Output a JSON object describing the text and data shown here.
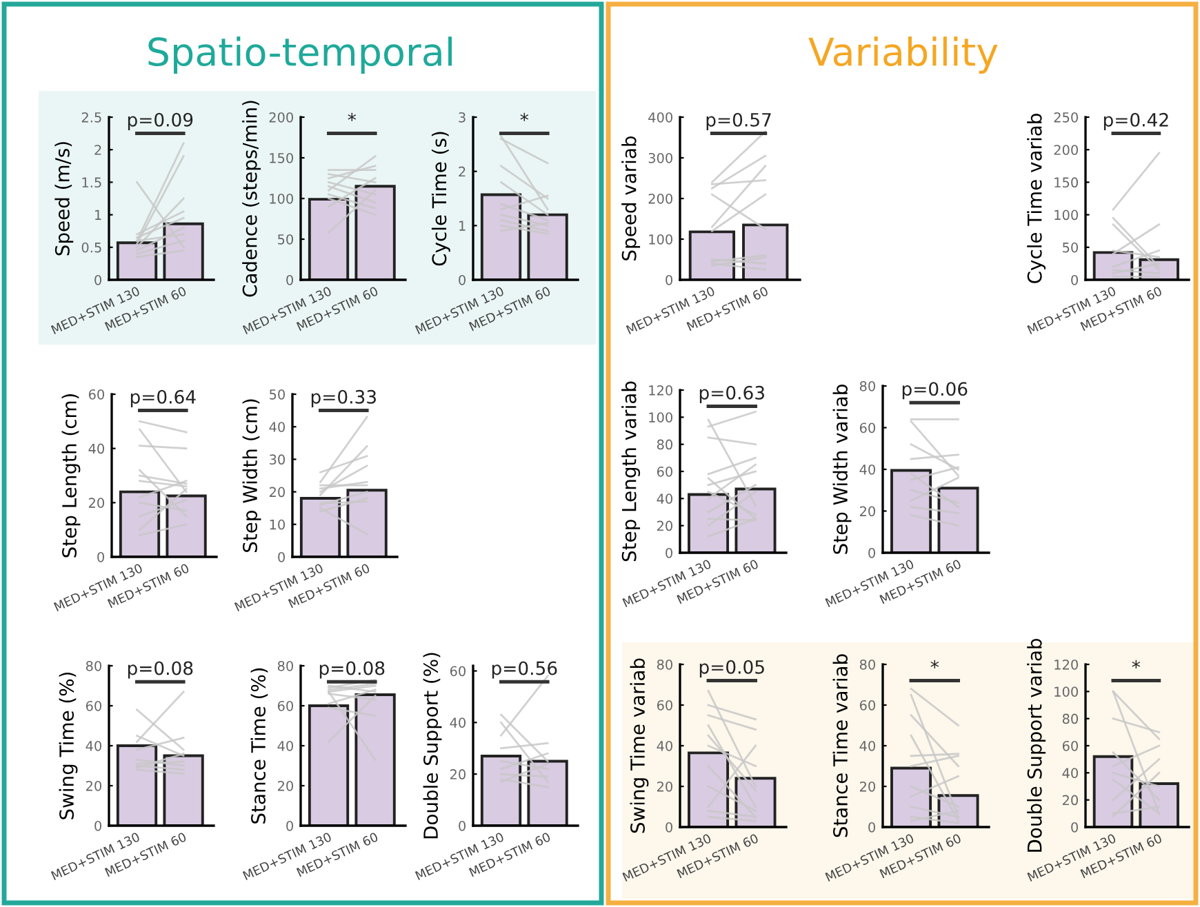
{
  "chart_data": [
    {
      "type": "other",
      "title": "Spatio-temporal"
    },
    {
      "type": "bar",
      "ylabel": "Speed (m/s)",
      "categories": [
        "MED+STIM 130",
        "MED+STIM 60"
      ],
      "ylim": [
        0,
        2.5
      ],
      "yticks": [
        0,
        0.5,
        1,
        1.5,
        2,
        2.5
      ],
      "annotations": [
        "p=0.09"
      ],
      "series": [
        {
          "type": "bar",
          "color": "#d9cbe2",
          "values": [
            0.57,
            0.86
          ]
        },
        {
          "type": "line",
          "color": "#c8c8c8",
          "values": [
            1.5,
            0.5
          ]
        },
        {
          "type": "line",
          "color": "#c8c8c8",
          "values": [
            0.6,
            2.1
          ]
        },
        {
          "type": "line",
          "color": "#c8c8c8",
          "values": [
            0.55,
            1.9
          ]
        },
        {
          "type": "line",
          "color": "#c8c8c8",
          "values": [
            0.5,
            1.25
          ]
        },
        {
          "type": "line",
          "color": "#c8c8c8",
          "values": [
            0.65,
            0.95
          ]
        },
        {
          "type": "line",
          "color": "#c8c8c8",
          "values": [
            0.4,
            0.6
          ]
        },
        {
          "type": "line",
          "color": "#c8c8c8",
          "values": [
            0.45,
            0.8
          ]
        },
        {
          "type": "line",
          "color": "#c8c8c8",
          "values": [
            0.6,
            0.7
          ]
        },
        {
          "type": "line",
          "color": "#c8c8c8",
          "values": [
            0.35,
            0.45
          ]
        },
        {
          "type": "line",
          "color": "#c8c8c8",
          "values": [
            0.7,
            1.05
          ]
        }
      ]
    },
    {
      "type": "bar",
      "ylabel": "Cadence (steps/min)",
      "categories": [
        "MED+STIM 130",
        "MED+STIM 60"
      ],
      "ylim": [
        0,
        200
      ],
      "yticks": [
        0,
        50,
        100,
        150,
        200
      ],
      "annotations": [
        "*"
      ],
      "series": [
        {
          "type": "bar",
          "color": "#d9cbe2",
          "values": [
            99,
            115
          ]
        },
        {
          "type": "line",
          "color": "#c8c8c8",
          "values": [
            58,
            110
          ]
        },
        {
          "type": "line",
          "color": "#c8c8c8",
          "values": [
            110,
            152
          ]
        },
        {
          "type": "line",
          "color": "#c8c8c8",
          "values": [
            130,
            120
          ]
        },
        {
          "type": "line",
          "color": "#c8c8c8",
          "values": [
            125,
            140
          ]
        },
        {
          "type": "line",
          "color": "#c8c8c8",
          "values": [
            115,
            95
          ]
        },
        {
          "type": "line",
          "color": "#c8c8c8",
          "values": [
            100,
            80
          ]
        },
        {
          "type": "line",
          "color": "#c8c8c8",
          "values": [
            135,
            135
          ]
        },
        {
          "type": "line",
          "color": "#c8c8c8",
          "values": [
            90,
            125
          ]
        },
        {
          "type": "line",
          "color": "#c8c8c8",
          "values": [
            120,
            105
          ]
        },
        {
          "type": "line",
          "color": "#c8c8c8",
          "values": [
            105,
            88
          ]
        }
      ]
    },
    {
      "type": "bar",
      "ylabel": "Cycle Time (s)",
      "categories": [
        "MED+STIM 130",
        "MED+STIM 60"
      ],
      "ylim": [
        0,
        3
      ],
      "yticks": [
        0,
        1,
        2,
        3
      ],
      "annotations": [
        "*"
      ],
      "series": [
        {
          "type": "bar",
          "color": "#d9cbe2",
          "values": [
            1.57,
            1.2
          ]
        },
        {
          "type": "line",
          "color": "#c8c8c8",
          "values": [
            2.65,
            1.3
          ]
        },
        {
          "type": "line",
          "color": "#c8c8c8",
          "values": [
            2.6,
            2.15
          ]
        },
        {
          "type": "line",
          "color": "#c8c8c8",
          "values": [
            2.1,
            1.5
          ]
        },
        {
          "type": "line",
          "color": "#c8c8c8",
          "values": [
            1.8,
            1.2
          ]
        },
        {
          "type": "line",
          "color": "#c8c8c8",
          "values": [
            1.3,
            1.55
          ]
        },
        {
          "type": "line",
          "color": "#c8c8c8",
          "values": [
            1.2,
            1.0
          ]
        },
        {
          "type": "line",
          "color": "#c8c8c8",
          "values": [
            1.1,
            0.9
          ]
        },
        {
          "type": "line",
          "color": "#c8c8c8",
          "values": [
            0.9,
            1.05
          ]
        },
        {
          "type": "line",
          "color": "#c8c8c8",
          "values": [
            1.0,
            0.85
          ]
        },
        {
          "type": "line",
          "color": "#c8c8c8",
          "values": [
            1.4,
            1.1
          ]
        }
      ]
    },
    {
      "type": "bar",
      "ylabel": "Step Length (cm)",
      "categories": [
        "MED+STIM 130",
        "MED+STIM 60"
      ],
      "ylim": [
        0,
        60
      ],
      "yticks": [
        0,
        20,
        40,
        60
      ],
      "annotations": [
        "p=0.64"
      ],
      "series": [
        {
          "type": "bar",
          "color": "#d9cbe2",
          "values": [
            24,
            22.5
          ]
        },
        {
          "type": "line",
          "color": "#c8c8c8",
          "values": [
            50,
            46
          ]
        },
        {
          "type": "line",
          "color": "#c8c8c8",
          "values": [
            47,
            24
          ]
        },
        {
          "type": "line",
          "color": "#c8c8c8",
          "values": [
            41,
            40
          ]
        },
        {
          "type": "line",
          "color": "#c8c8c8",
          "values": [
            32,
            15
          ]
        },
        {
          "type": "line",
          "color": "#c8c8c8",
          "values": [
            30,
            27
          ]
        },
        {
          "type": "line",
          "color": "#c8c8c8",
          "values": [
            28,
            26
          ]
        },
        {
          "type": "line",
          "color": "#c8c8c8",
          "values": [
            22,
            28
          ]
        },
        {
          "type": "line",
          "color": "#c8c8c8",
          "values": [
            20,
            17
          ]
        },
        {
          "type": "line",
          "color": "#c8c8c8",
          "values": [
            15,
            21
          ]
        },
        {
          "type": "line",
          "color": "#c8c8c8",
          "values": [
            10,
            25
          ]
        },
        {
          "type": "line",
          "color": "#c8c8c8",
          "values": [
            8,
            12
          ]
        }
      ]
    },
    {
      "type": "bar",
      "ylabel": "Step Width (cm)",
      "categories": [
        "MED+STIM 130",
        "MED+STIM 60"
      ],
      "ylim": [
        0,
        50
      ],
      "yticks": [
        0,
        10,
        20,
        30,
        40,
        50
      ],
      "annotations": [
        "p=0.33"
      ],
      "series": [
        {
          "type": "bar",
          "color": "#d9cbe2",
          "values": [
            18,
            20.5
          ]
        },
        {
          "type": "line",
          "color": "#c8c8c8",
          "values": [
            26,
            31
          ]
        },
        {
          "type": "line",
          "color": "#c8c8c8",
          "values": [
            23,
            43
          ]
        },
        {
          "type": "line",
          "color": "#c8c8c8",
          "values": [
            22,
            22
          ]
        },
        {
          "type": "line",
          "color": "#c8c8c8",
          "values": [
            20,
            28
          ]
        },
        {
          "type": "line",
          "color": "#c8c8c8",
          "values": [
            19,
            34
          ]
        },
        {
          "type": "line",
          "color": "#c8c8c8",
          "values": [
            16.5,
            17
          ]
        },
        {
          "type": "line",
          "color": "#c8c8c8",
          "values": [
            16,
            20
          ]
        },
        {
          "type": "line",
          "color": "#c8c8c8",
          "values": [
            15,
            7
          ]
        },
        {
          "type": "line",
          "color": "#c8c8c8",
          "values": [
            14,
            18
          ]
        },
        {
          "type": "line",
          "color": "#c8c8c8",
          "values": [
            21,
            23
          ]
        }
      ]
    },
    {
      "type": "bar",
      "ylabel": "Swing Time (%)",
      "categories": [
        "MED+STIM 130",
        "MED+STIM 60"
      ],
      "ylim": [
        0,
        80
      ],
      "yticks": [
        0,
        20,
        40,
        60,
        80
      ],
      "annotations": [
        "p=0.08"
      ],
      "series": [
        {
          "type": "bar",
          "color": "#d9cbe2",
          "values": [
            40,
            35
          ]
        },
        {
          "type": "line",
          "color": "#c8c8c8",
          "values": [
            58,
            38
          ]
        },
        {
          "type": "line",
          "color": "#c8c8c8",
          "values": [
            45,
            35
          ]
        },
        {
          "type": "line",
          "color": "#c8c8c8",
          "values": [
            42,
            67
          ]
        },
        {
          "type": "line",
          "color": "#c8c8c8",
          "values": [
            38,
            44
          ]
        },
        {
          "type": "line",
          "color": "#c8c8c8",
          "values": [
            33,
            30
          ]
        },
        {
          "type": "line",
          "color": "#c8c8c8",
          "values": [
            31,
            32
          ]
        },
        {
          "type": "line",
          "color": "#c8c8c8",
          "values": [
            30,
            28
          ]
        },
        {
          "type": "line",
          "color": "#c8c8c8",
          "values": [
            29,
            36
          ]
        },
        {
          "type": "line",
          "color": "#c8c8c8",
          "values": [
            28,
            26
          ]
        }
      ]
    },
    {
      "type": "bar",
      "ylabel": "Stance Time (%)",
      "categories": [
        "MED+STIM 130",
        "MED+STIM 60"
      ],
      "ylim": [
        0,
        80
      ],
      "yticks": [
        0,
        20,
        40,
        60,
        80
      ],
      "annotations": [
        "p=0.08"
      ],
      "series": [
        {
          "type": "bar",
          "color": "#d9cbe2",
          "values": [
            60,
            65.5
          ]
        },
        {
          "type": "line",
          "color": "#c8c8c8",
          "values": [
            70,
            67
          ]
        },
        {
          "type": "line",
          "color": "#c8c8c8",
          "values": [
            69,
            73
          ]
        },
        {
          "type": "line",
          "color": "#c8c8c8",
          "values": [
            68,
            71
          ]
        },
        {
          "type": "line",
          "color": "#c8c8c8",
          "values": [
            67,
            70
          ]
        },
        {
          "type": "line",
          "color": "#c8c8c8",
          "values": [
            66,
            63
          ]
        },
        {
          "type": "line",
          "color": "#c8c8c8",
          "values": [
            61,
            68
          ]
        },
        {
          "type": "line",
          "color": "#c8c8c8",
          "values": [
            59,
            55
          ]
        },
        {
          "type": "line",
          "color": "#c8c8c8",
          "values": [
            42,
            65
          ]
        },
        {
          "type": "line",
          "color": "#c8c8c8",
          "values": [
            67,
            33
          ]
        }
      ]
    },
    {
      "type": "bar",
      "ylabel": "Double Support (%)",
      "categories": [
        "MED+STIM 130",
        "MED+STIM 60"
      ],
      "ylim": [
        0,
        62
      ],
      "yticks": [
        0,
        20,
        40,
        60
      ],
      "annotations": [
        "p=0.56"
      ],
      "series": [
        {
          "type": "bar",
          "color": "#d9cbe2",
          "values": [
            27,
            25
          ]
        },
        {
          "type": "line",
          "color": "#c8c8c8",
          "values": [
            43,
            25
          ]
        },
        {
          "type": "line",
          "color": "#c8c8c8",
          "values": [
            40,
            17
          ]
        },
        {
          "type": "line",
          "color": "#c8c8c8",
          "values": [
            35,
            58
          ]
        },
        {
          "type": "line",
          "color": "#c8c8c8",
          "values": [
            30,
            32
          ]
        },
        {
          "type": "line",
          "color": "#c8c8c8",
          "values": [
            25,
            22
          ]
        },
        {
          "type": "line",
          "color": "#c8c8c8",
          "values": [
            22,
            28
          ]
        },
        {
          "type": "line",
          "color": "#c8c8c8",
          "values": [
            20,
            19
          ]
        },
        {
          "type": "line",
          "color": "#c8c8c8",
          "values": [
            18,
            15
          ]
        },
        {
          "type": "line",
          "color": "#c8c8c8",
          "values": [
            17,
            24
          ]
        }
      ]
    },
    {
      "type": "other",
      "title": "Variability"
    },
    {
      "type": "bar",
      "ylabel": "Speed variab",
      "categories": [
        "MED+STIM 130",
        "MED+STIM 60"
      ],
      "ylim": [
        0,
        400
      ],
      "yticks": [
        0,
        100,
        200,
        300,
        400
      ],
      "annotations": [
        "p=0.57"
      ],
      "series": [
        {
          "type": "bar",
          "color": "#d9cbe2",
          "values": [
            118,
            135
          ]
        },
        {
          "type": "line",
          "color": "#c8c8c8",
          "values": [
            240,
            365
          ]
        },
        {
          "type": "line",
          "color": "#c8c8c8",
          "values": [
            235,
            245
          ]
        },
        {
          "type": "line",
          "color": "#c8c8c8",
          "values": [
            225,
            305
          ]
        },
        {
          "type": "line",
          "color": "#c8c8c8",
          "values": [
            210,
            125
          ]
        },
        {
          "type": "line",
          "color": "#c8c8c8",
          "values": [
            130,
            280
          ]
        },
        {
          "type": "line",
          "color": "#c8c8c8",
          "values": [
            120,
            210
          ]
        },
        {
          "type": "line",
          "color": "#c8c8c8",
          "values": [
            50,
            40
          ]
        },
        {
          "type": "line",
          "color": "#c8c8c8",
          "values": [
            45,
            60
          ]
        },
        {
          "type": "line",
          "color": "#c8c8c8",
          "values": [
            40,
            25
          ]
        },
        {
          "type": "line",
          "color": "#c8c8c8",
          "values": [
            35,
            55
          ]
        }
      ]
    },
    {
      "type": "bar",
      "ylabel": "Cycle Time variab",
      "categories": [
        "MED+STIM 130",
        "MED+STIM 60"
      ],
      "ylim": [
        0,
        250
      ],
      "yticks": [
        0,
        50,
        100,
        150,
        200,
        250
      ],
      "annotations": [
        "p=0.42"
      ],
      "series": [
        {
          "type": "bar",
          "color": "#d9cbe2",
          "values": [
            42,
            31
          ]
        },
        {
          "type": "line",
          "color": "#c8c8c8",
          "values": [
            108,
            195
          ]
        },
        {
          "type": "line",
          "color": "#c8c8c8",
          "values": [
            95,
            20
          ]
        },
        {
          "type": "line",
          "color": "#c8c8c8",
          "values": [
            85,
            15
          ]
        },
        {
          "type": "line",
          "color": "#c8c8c8",
          "values": [
            45,
            35
          ]
        },
        {
          "type": "line",
          "color": "#c8c8c8",
          "values": [
            40,
            85
          ]
        },
        {
          "type": "line",
          "color": "#c8c8c8",
          "values": [
            20,
            45
          ]
        },
        {
          "type": "line",
          "color": "#c8c8c8",
          "values": [
            15,
            10
          ]
        },
        {
          "type": "line",
          "color": "#c8c8c8",
          "values": [
            10,
            25
          ]
        },
        {
          "type": "line",
          "color": "#c8c8c8",
          "values": [
            5,
            5
          ]
        }
      ]
    },
    {
      "type": "bar",
      "ylabel": "Step Length variab",
      "categories": [
        "MED+STIM 130",
        "MED+STIM 60"
      ],
      "ylim": [
        0,
        120
      ],
      "yticks": [
        0,
        20,
        40,
        60,
        80,
        100,
        120
      ],
      "annotations": [
        "p=0.63"
      ],
      "series": [
        {
          "type": "bar",
          "color": "#d9cbe2",
          "values": [
            43,
            47
          ]
        },
        {
          "type": "line",
          "color": "#c8c8c8",
          "values": [
            98,
            35
          ]
        },
        {
          "type": "line",
          "color": "#c8c8c8",
          "values": [
            93,
            104
          ]
        },
        {
          "type": "line",
          "color": "#c8c8c8",
          "values": [
            85,
            80
          ]
        },
        {
          "type": "line",
          "color": "#c8c8c8",
          "values": [
            58,
            70
          ]
        },
        {
          "type": "line",
          "color": "#c8c8c8",
          "values": [
            55,
            25
          ]
        },
        {
          "type": "line",
          "color": "#c8c8c8",
          "values": [
            50,
            60
          ]
        },
        {
          "type": "line",
          "color": "#c8c8c8",
          "values": [
            45,
            28
          ]
        },
        {
          "type": "line",
          "color": "#c8c8c8",
          "values": [
            40,
            65
          ]
        },
        {
          "type": "line",
          "color": "#c8c8c8",
          "values": [
            30,
            50
          ]
        },
        {
          "type": "line",
          "color": "#c8c8c8",
          "values": [
            25,
            24
          ]
        },
        {
          "type": "line",
          "color": "#c8c8c8",
          "values": [
            20,
            45
          ]
        },
        {
          "type": "line",
          "color": "#c8c8c8",
          "values": [
            12,
            25
          ]
        }
      ]
    },
    {
      "type": "bar",
      "ylabel": "Step Width variab",
      "categories": [
        "MED+STIM 130",
        "MED+STIM 60"
      ],
      "ylim": [
        0,
        80
      ],
      "yticks": [
        0,
        20,
        40,
        60,
        80
      ],
      "annotations": [
        "p=0.06"
      ],
      "series": [
        {
          "type": "bar",
          "color": "#d9cbe2",
          "values": [
            39.5,
            31
          ]
        },
        {
          "type": "line",
          "color": "#c8c8c8",
          "values": [
            64,
            64
          ]
        },
        {
          "type": "line",
          "color": "#c8c8c8",
          "values": [
            63,
            37
          ]
        },
        {
          "type": "line",
          "color": "#c8c8c8",
          "values": [
            52,
            40
          ]
        },
        {
          "type": "line",
          "color": "#c8c8c8",
          "values": [
            45,
            47
          ]
        },
        {
          "type": "line",
          "color": "#c8c8c8",
          "values": [
            38,
            22
          ]
        },
        {
          "type": "line",
          "color": "#c8c8c8",
          "values": [
            35,
            41
          ]
        },
        {
          "type": "line",
          "color": "#c8c8c8",
          "values": [
            30,
            24
          ]
        },
        {
          "type": "line",
          "color": "#c8c8c8",
          "values": [
            22,
            19
          ]
        },
        {
          "type": "line",
          "color": "#c8c8c8",
          "values": [
            18,
            13
          ]
        },
        {
          "type": "line",
          "color": "#c8c8c8",
          "values": [
            25,
            36
          ]
        }
      ]
    },
    {
      "type": "bar",
      "ylabel": "Swing Time variab",
      "categories": [
        "MED+STIM 130",
        "MED+STIM 60"
      ],
      "ylim": [
        0,
        80
      ],
      "yticks": [
        0,
        20,
        40,
        60,
        80
      ],
      "annotations": [
        "p=0.05"
      ],
      "series": [
        {
          "type": "bar",
          "color": "#d9cbe2",
          "values": [
            36.5,
            24
          ]
        },
        {
          "type": "line",
          "color": "#c8c8c8",
          "values": [
            67,
            20
          ]
        },
        {
          "type": "line",
          "color": "#c8c8c8",
          "values": [
            60,
            53
          ]
        },
        {
          "type": "line",
          "color": "#c8c8c8",
          "values": [
            55,
            48
          ]
        },
        {
          "type": "line",
          "color": "#c8c8c8",
          "values": [
            50,
            10
          ]
        },
        {
          "type": "line",
          "color": "#c8c8c8",
          "values": [
            45,
            18
          ]
        },
        {
          "type": "line",
          "color": "#c8c8c8",
          "values": [
            40,
            30
          ]
        },
        {
          "type": "line",
          "color": "#c8c8c8",
          "values": [
            30,
            5
          ]
        },
        {
          "type": "line",
          "color": "#c8c8c8",
          "values": [
            20,
            8
          ]
        },
        {
          "type": "line",
          "color": "#c8c8c8",
          "values": [
            10,
            40
          ]
        },
        {
          "type": "line",
          "color": "#c8c8c8",
          "values": [
            8,
            5
          ]
        },
        {
          "type": "line",
          "color": "#c8c8c8",
          "values": [
            5,
            3
          ]
        }
      ]
    },
    {
      "type": "bar",
      "ylabel": "Stance Time variab",
      "categories": [
        "MED+STIM 130",
        "MED+STIM 60"
      ],
      "ylim": [
        0,
        80
      ],
      "yticks": [
        0,
        20,
        40,
        60,
        80
      ],
      "annotations": [
        "*"
      ],
      "series": [
        {
          "type": "bar",
          "color": "#d9cbe2",
          "values": [
            29,
            15.5
          ]
        },
        {
          "type": "line",
          "color": "#c8c8c8",
          "values": [
            68,
            50
          ]
        },
        {
          "type": "line",
          "color": "#c8c8c8",
          "values": [
            65,
            5
          ]
        },
        {
          "type": "line",
          "color": "#c8c8c8",
          "values": [
            55,
            30
          ]
        },
        {
          "type": "line",
          "color": "#c8c8c8",
          "values": [
            45,
            3
          ]
        },
        {
          "type": "line",
          "color": "#c8c8c8",
          "values": [
            35,
            36
          ]
        },
        {
          "type": "line",
          "color": "#c8c8c8",
          "values": [
            30,
            35
          ]
        },
        {
          "type": "line",
          "color": "#c8c8c8",
          "values": [
            20,
            10
          ]
        },
        {
          "type": "line",
          "color": "#c8c8c8",
          "values": [
            15,
            25
          ]
        },
        {
          "type": "line",
          "color": "#c8c8c8",
          "values": [
            10,
            5
          ]
        },
        {
          "type": "line",
          "color": "#c8c8c8",
          "values": [
            5,
            2
          ]
        },
        {
          "type": "line",
          "color": "#c8c8c8",
          "values": [
            3,
            8
          ]
        }
      ]
    },
    {
      "type": "bar",
      "ylabel": "Double Support variab",
      "categories": [
        "MED+STIM 130",
        "MED+STIM 60"
      ],
      "ylim": [
        0,
        120
      ],
      "yticks": [
        0,
        20,
        40,
        60,
        80,
        100,
        120
      ],
      "annotations": [
        "*"
      ],
      "series": [
        {
          "type": "bar",
          "color": "#d9cbe2",
          "values": [
            52,
            32
          ]
        },
        {
          "type": "line",
          "color": "#c8c8c8",
          "values": [
            100,
            65
          ]
        },
        {
          "type": "line",
          "color": "#c8c8c8",
          "values": [
            100,
            10
          ]
        },
        {
          "type": "line",
          "color": "#c8c8c8",
          "values": [
            80,
            70
          ]
        },
        {
          "type": "line",
          "color": "#c8c8c8",
          "values": [
            55,
            20
          ]
        },
        {
          "type": "line",
          "color": "#c8c8c8",
          "values": [
            45,
            60
          ]
        },
        {
          "type": "line",
          "color": "#c8c8c8",
          "values": [
            40,
            30
          ]
        },
        {
          "type": "line",
          "color": "#c8c8c8",
          "values": [
            35,
            10
          ]
        },
        {
          "type": "line",
          "color": "#c8c8c8",
          "values": [
            20,
            50
          ]
        },
        {
          "type": "line",
          "color": "#c8c8c8",
          "values": [
            10,
            15
          ]
        },
        {
          "type": "line",
          "color": "#c8c8c8",
          "values": [
            8,
            40
          ]
        }
      ]
    }
  ]
}
